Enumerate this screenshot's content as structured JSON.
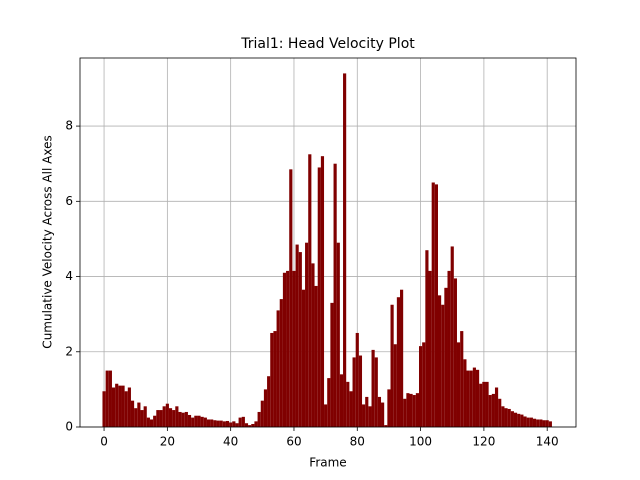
{
  "chart_data": {
    "type": "bar",
    "title": "Trial1: Head Velocity Plot",
    "x_label": "Frame",
    "y_label": "Cumulative Velocity Across All Axes",
    "color": "#800000",
    "grid": true,
    "xlim": [
      -7.6,
      149.1
    ],
    "ylim": [
      0,
      9.81
    ],
    "xticks": [
      0,
      20,
      40,
      60,
      80,
      100,
      120,
      140
    ],
    "yticks": [
      0,
      2,
      4,
      6,
      8
    ],
    "x": [
      0,
      1,
      2,
      3,
      4,
      5,
      6,
      7,
      8,
      9,
      10,
      11,
      12,
      13,
      14,
      15,
      16,
      17,
      18,
      19,
      20,
      21,
      22,
      23,
      24,
      25,
      26,
      27,
      28,
      29,
      30,
      31,
      32,
      33,
      34,
      35,
      36,
      37,
      38,
      39,
      40,
      41,
      42,
      43,
      44,
      45,
      46,
      47,
      48,
      49,
      50,
      51,
      52,
      53,
      54,
      55,
      56,
      57,
      58,
      59,
      60,
      61,
      62,
      63,
      64,
      65,
      66,
      67,
      68,
      69,
      70,
      71,
      72,
      73,
      74,
      75,
      76,
      77,
      78,
      79,
      80,
      81,
      82,
      83,
      84,
      85,
      86,
      87,
      88,
      89,
      90,
      91,
      92,
      93,
      94,
      95,
      96,
      97,
      98,
      99,
      100,
      101,
      102,
      103,
      104,
      105,
      106,
      107,
      108,
      109,
      110,
      111,
      112,
      113,
      114,
      115,
      116,
      117,
      118,
      119,
      120,
      121,
      122,
      123,
      124,
      125,
      126,
      127,
      128,
      129,
      130,
      131,
      132,
      133,
      134,
      135,
      136,
      137,
      138,
      139,
      140,
      141
    ],
    "values": [
      0.95,
      1.5,
      1.5,
      1.05,
      1.15,
      1.1,
      1.1,
      0.95,
      1.05,
      0.7,
      0.5,
      0.65,
      0.45,
      0.55,
      0.25,
      0.2,
      0.3,
      0.45,
      0.45,
      0.55,
      0.62,
      0.5,
      0.45,
      0.55,
      0.4,
      0.38,
      0.4,
      0.32,
      0.25,
      0.3,
      0.3,
      0.27,
      0.25,
      0.2,
      0.2,
      0.18,
      0.17,
      0.17,
      0.15,
      0.16,
      0.12,
      0.15,
      0.1,
      0.25,
      0.27,
      0.1,
      0.05,
      0.08,
      0.15,
      0.4,
      0.7,
      1.0,
      1.35,
      2.5,
      2.55,
      3.1,
      3.4,
      4.1,
      4.15,
      6.85,
      4.15,
      4.85,
      4.65,
      3.65,
      4.9,
      7.25,
      4.35,
      3.75,
      6.9,
      7.2,
      0.6,
      1.3,
      3.3,
      7.0,
      4.9,
      1.4,
      9.4,
      1.2,
      0.95,
      1.85,
      2.5,
      1.9,
      0.6,
      0.8,
      0.55,
      2.05,
      1.85,
      0.8,
      0.65,
      0.05,
      1.0,
      3.25,
      2.2,
      3.45,
      3.65,
      0.75,
      0.9,
      0.88,
      0.85,
      0.9,
      2.15,
      2.25,
      4.7,
      4.15,
      6.5,
      6.45,
      3.5,
      3.25,
      3.7,
      4.15,
      4.8,
      3.95,
      2.25,
      2.55,
      1.8,
      1.5,
      1.5,
      1.58,
      1.52,
      1.15,
      1.2,
      1.2,
      0.85,
      0.88,
      1.05,
      0.75,
      0.55,
      0.5,
      0.48,
      0.42,
      0.38,
      0.35,
      0.33,
      0.28,
      0.25,
      0.25,
      0.22,
      0.2,
      0.2,
      0.18,
      0.18,
      0.15
    ]
  }
}
